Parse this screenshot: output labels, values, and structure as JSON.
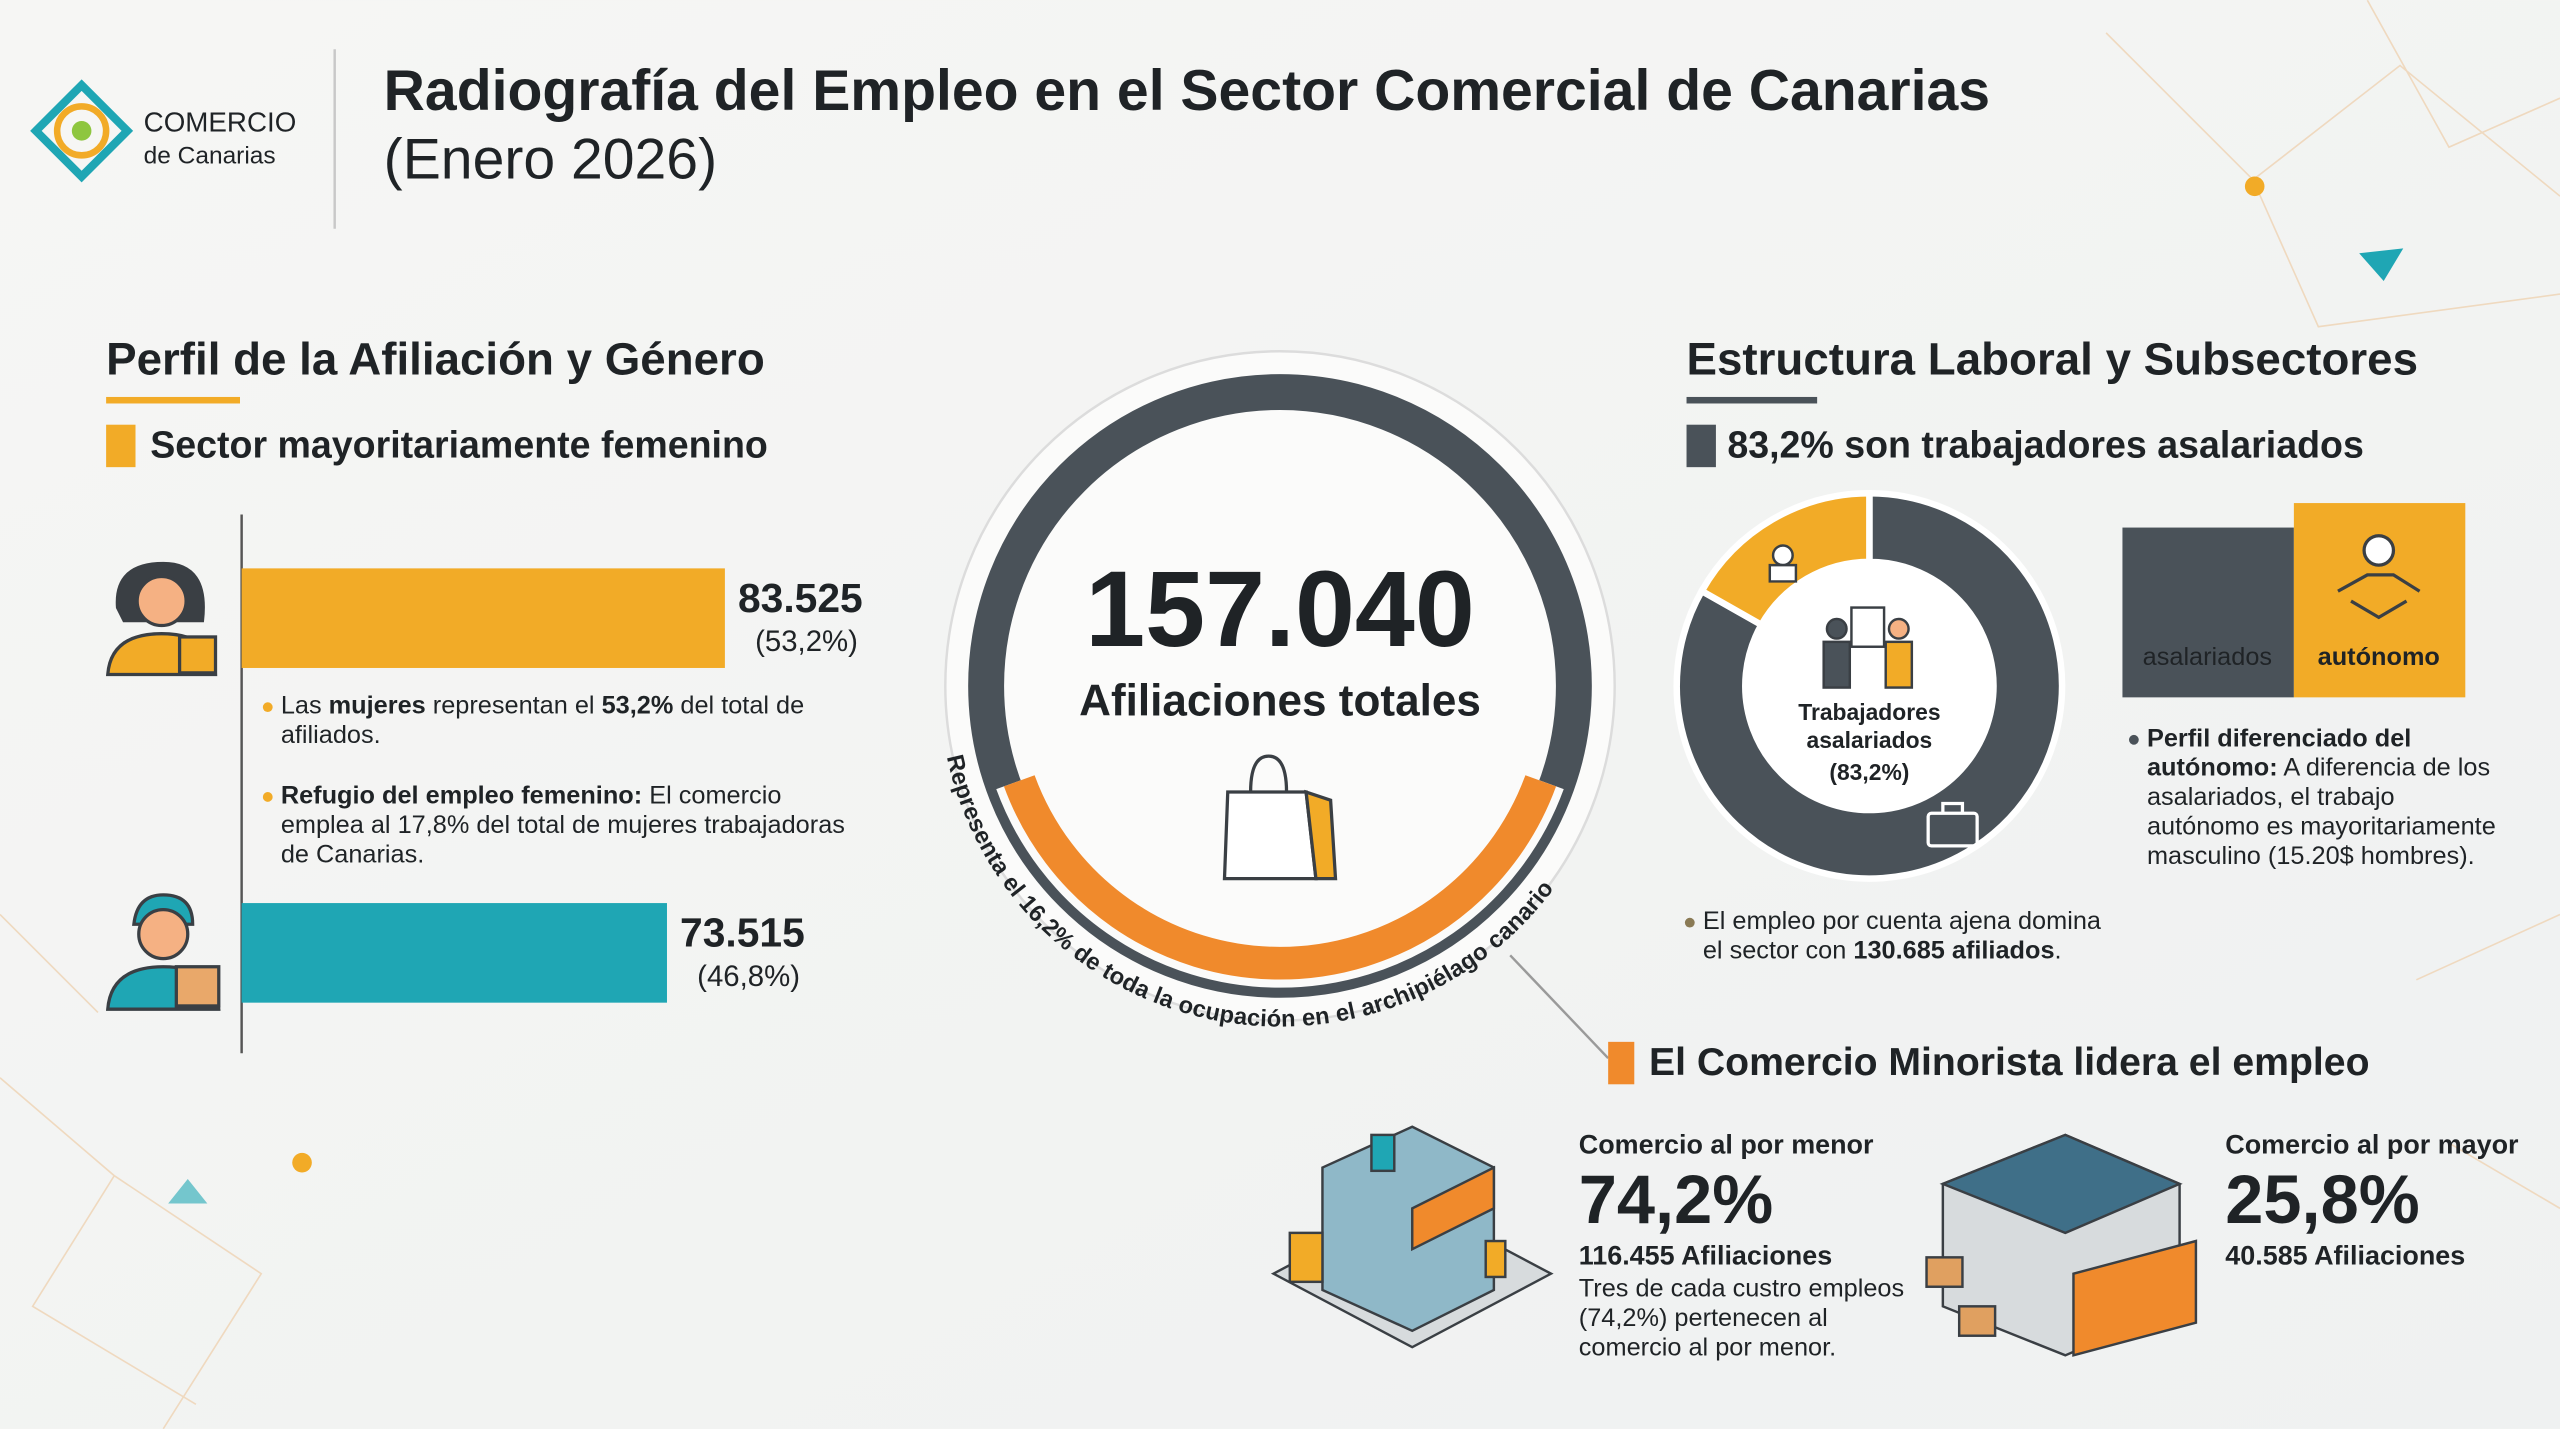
{
  "header": {
    "logo_line1": "COMERCIO",
    "logo_line2": "de Canarias",
    "title": "Radiografía del Empleo en el Sector Comercial de Canarias",
    "subtitle": "(Enero 2026)"
  },
  "gender": {
    "heading": "Perfil de la Afiliación y Género",
    "subheading": "Sector mayoritariamente femenino",
    "bars": [
      {
        "value": 83525,
        "label": "83.525",
        "share": "(53,2%)",
        "color": "#f2ab27"
      },
      {
        "value": 73515,
        "label": "73.515",
        "share": "(46,8%)",
        "color": "#1fa6b4"
      }
    ],
    "notes": [
      [
        {
          "text": "Las "
        },
        {
          "text": "mujeres",
          "bold": true
        },
        {
          "text": " representan el "
        },
        {
          "text": "53,2%",
          "bold": true
        },
        {
          "text": " del total de afiliados."
        }
      ],
      [
        {
          "text": "Refugio del empleo femenino:",
          "bold": true
        },
        {
          "text": " El comercio emplea al 17,8% del total de mujeres trabajadoras de Canarias."
        }
      ]
    ]
  },
  "total": {
    "value_label": "157.040",
    "caption": "Afiliaciones totales",
    "arc_text": "Representa el 16,2% de toda la ocupación en el archipiélago canario"
  },
  "structure": {
    "heading": "Estructura Laboral y Subsectores",
    "subheading": "83,2% son trabajadores asalariados",
    "donut": {
      "segments": [
        {
          "name": "asalariados",
          "value": 83.2,
          "color": "#4a5259"
        },
        {
          "name": "autónomo",
          "value": 16.8,
          "color": "#f2ab27"
        }
      ],
      "center_label": "Trabajadores asalariados",
      "center_value": "(83,2%)"
    },
    "donut_note": [
      {
        "text": "El empleo por cuenta ajena domina el sector con "
      },
      {
        "text": "130.685 afiliados",
        "bold": true
      },
      {
        "text": "."
      }
    ],
    "autonomo_note": [
      {
        "text": "Perfil diferenciado del autónomo:",
        "bold": true
      },
      {
        "text": " A diferencia de los asalariados, el trabajo autónomo es mayoritariamente masculino (15.20$ hombres)."
      }
    ]
  },
  "retail": {
    "heading": "El Comercio Minorista lidera el empleo",
    "sectors": [
      {
        "name": "Comercio al por menor",
        "share": "74,2%",
        "affiliations": "116.455 Afiliaciones",
        "note": "Tres de cada custro empleos (74,2%) pertenecen al comercio al por menor."
      },
      {
        "name": "Comercio al por mayor",
        "share": "25,8%",
        "affiliations": "40.585 Afiliaciones"
      }
    ]
  }
}
